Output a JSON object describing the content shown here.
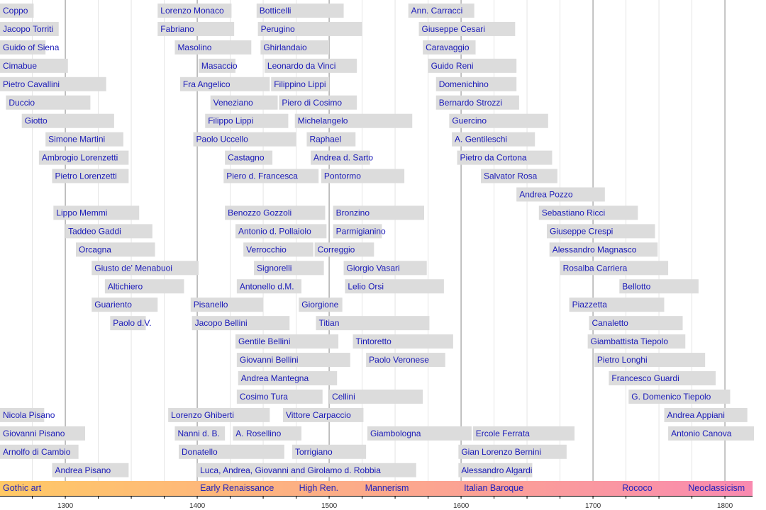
{
  "chart_data": {
    "type": "timeline",
    "xlim": [
      1250,
      1821
    ],
    "x_ticks": [
      1300,
      1400,
      1500,
      1600,
      1700,
      1800
    ],
    "minor_tick_step": 25,
    "grid": true,
    "colors": {
      "bar": "#dcdcdc",
      "label": "#1a1ab8",
      "period_start": "#ffc966",
      "period_end": "#f98ab0",
      "major_grid": "#888888",
      "minor_grid": "#e4e4e4"
    },
    "artists": [
      {
        "name": "Coppo",
        "row": 0,
        "start": 1250,
        "end": 1276
      },
      {
        "name": "Lorenzo Monaco",
        "row": 0,
        "start": 1370,
        "end": 1426
      },
      {
        "name": "Botticelli",
        "row": 0,
        "start": 1445,
        "end": 1511
      },
      {
        "name": "Ann. Carracci",
        "row": 0,
        "start": 1560,
        "end": 1610
      },
      {
        "name": "Jacopo Torriti",
        "row": 1,
        "start": 1250,
        "end": 1295
      },
      {
        "name": "Fabriano",
        "row": 1,
        "start": 1370,
        "end": 1428
      },
      {
        "name": "Perugino",
        "row": 1,
        "start": 1446,
        "end": 1525
      },
      {
        "name": "Giuseppe Cesari",
        "row": 1,
        "start": 1568,
        "end": 1641
      },
      {
        "name": "Guido of Siena",
        "row": 2,
        "start": 1250,
        "end": 1285
      },
      {
        "name": "Masolino",
        "row": 2,
        "start": 1383,
        "end": 1441
      },
      {
        "name": "Ghirlandaio",
        "row": 2,
        "start": 1448,
        "end": 1500
      },
      {
        "name": "Caravaggio",
        "row": 2,
        "start": 1571,
        "end": 1611
      },
      {
        "name": "Cimabue",
        "row": 3,
        "start": 1250,
        "end": 1302
      },
      {
        "name": "Masaccio",
        "row": 3,
        "start": 1401,
        "end": 1429
      },
      {
        "name": "Leonardo da Vinci",
        "row": 3,
        "start": 1451,
        "end": 1521
      },
      {
        "name": "Guido Reni",
        "row": 3,
        "start": 1575,
        "end": 1642
      },
      {
        "name": "Pietro Cavallini",
        "row": 4,
        "start": 1250,
        "end": 1331
      },
      {
        "name": "Fra Angelico",
        "row": 4,
        "start": 1387,
        "end": 1455
      },
      {
        "name": "Filippino Lippi",
        "row": 4,
        "start": 1456,
        "end": 1500
      },
      {
        "name": "Domenichino",
        "row": 4,
        "start": 1581,
        "end": 1642
      },
      {
        "name": "Duccio",
        "row": 5,
        "start": 1255,
        "end": 1319
      },
      {
        "name": "Veneziano",
        "row": 5,
        "start": 1410,
        "end": 1461
      },
      {
        "name": "Piero di Cosimo",
        "row": 5,
        "start": 1462,
        "end": 1521
      },
      {
        "name": "Bernardo Strozzi",
        "row": 5,
        "start": 1581,
        "end": 1644
      },
      {
        "name": "Giotto",
        "row": 6,
        "start": 1267,
        "end": 1337
      },
      {
        "name": "Filippo Lippi",
        "row": 6,
        "start": 1406,
        "end": 1469
      },
      {
        "name": "Michelangelo",
        "row": 6,
        "start": 1474,
        "end": 1563
      },
      {
        "name": "Guercino",
        "row": 6,
        "start": 1591,
        "end": 1666
      },
      {
        "name": "Simone Martini",
        "row": 7,
        "start": 1285,
        "end": 1344
      },
      {
        "name": "Paolo Uccello",
        "row": 7,
        "start": 1397,
        "end": 1475
      },
      {
        "name": "Raphael",
        "row": 7,
        "start": 1483,
        "end": 1520
      },
      {
        "name": "A. Gentileschi",
        "row": 7,
        "start": 1593,
        "end": 1656
      },
      {
        "name": "Ambrogio Lorenzetti",
        "row": 8,
        "start": 1280,
        "end": 1348
      },
      {
        "name": "Castagno",
        "row": 8,
        "start": 1421,
        "end": 1457
      },
      {
        "name": "Andrea d. Sarto",
        "row": 8,
        "start": 1486,
        "end": 1531
      },
      {
        "name": "Pietro da Cortona",
        "row": 8,
        "start": 1597,
        "end": 1669
      },
      {
        "name": "Pietro Lorenzetti",
        "row": 9,
        "start": 1290,
        "end": 1348
      },
      {
        "name": "Piero d. Francesca",
        "row": 9,
        "start": 1420,
        "end": 1492
      },
      {
        "name": "Pontormo",
        "row": 9,
        "start": 1494,
        "end": 1557
      },
      {
        "name": "Salvator Rosa",
        "row": 9,
        "start": 1615,
        "end": 1673
      },
      {
        "name": "Andrea Pozzo",
        "row": 10,
        "start": 1642,
        "end": 1709
      },
      {
        "name": "Lippo Memmi",
        "row": 11,
        "start": 1291,
        "end": 1356
      },
      {
        "name": "Benozzo Gozzoli",
        "row": 11,
        "start": 1421,
        "end": 1497
      },
      {
        "name": "Bronzino",
        "row": 11,
        "start": 1503,
        "end": 1572
      },
      {
        "name": "Sebastiano Ricci",
        "row": 11,
        "start": 1659,
        "end": 1734
      },
      {
        "name": "Taddeo Gaddi",
        "row": 12,
        "start": 1300,
        "end": 1366
      },
      {
        "name": "Antonio d. Pollaiolo",
        "row": 12,
        "start": 1429,
        "end": 1498
      },
      {
        "name": "Parmigianino",
        "row": 12,
        "start": 1503,
        "end": 1540
      },
      {
        "name": "Giuseppe Crespi",
        "row": 12,
        "start": 1665,
        "end": 1747
      },
      {
        "name": "Orcagna",
        "row": 13,
        "start": 1308,
        "end": 1368
      },
      {
        "name": "Verrocchio",
        "row": 13,
        "start": 1435,
        "end": 1488
      },
      {
        "name": "Correggio",
        "row": 13,
        "start": 1489,
        "end": 1534
      },
      {
        "name": "Alessandro Magnasco",
        "row": 13,
        "start": 1667,
        "end": 1749
      },
      {
        "name": "Giusto de' Menabuoi",
        "row": 14,
        "start": 1320,
        "end": 1401
      },
      {
        "name": "Signorelli",
        "row": 14,
        "start": 1443,
        "end": 1496
      },
      {
        "name": "Giorgio Vasari",
        "row": 14,
        "start": 1511,
        "end": 1574
      },
      {
        "name": "Rosalba Carriera",
        "row": 14,
        "start": 1675,
        "end": 1757
      },
      {
        "name": "Altichiero",
        "row": 15,
        "start": 1330,
        "end": 1390
      },
      {
        "name": "Antonello d.M.",
        "row": 15,
        "start": 1430,
        "end": 1479
      },
      {
        "name": "Lelio Orsi",
        "row": 15,
        "start": 1512,
        "end": 1587
      },
      {
        "name": "Bellotto",
        "row": 15,
        "start": 1720,
        "end": 1780
      },
      {
        "name": "Guariento",
        "row": 16,
        "start": 1320,
        "end": 1370
      },
      {
        "name": "Pisanello",
        "row": 16,
        "start": 1395,
        "end": 1450
      },
      {
        "name": "Giorgione",
        "row": 16,
        "start": 1477,
        "end": 1510
      },
      {
        "name": "Piazzetta",
        "row": 16,
        "start": 1682,
        "end": 1754
      },
      {
        "name": "Paolo d.V.",
        "row": 17,
        "start": 1334,
        "end": 1361
      },
      {
        "name": "Jacopo Bellini",
        "row": 17,
        "start": 1396,
        "end": 1470
      },
      {
        "name": "Titian",
        "row": 17,
        "start": 1490,
        "end": 1576
      },
      {
        "name": "Canaletto",
        "row": 17,
        "start": 1697,
        "end": 1768
      },
      {
        "name": "Gentile Bellini",
        "row": 18,
        "start": 1429,
        "end": 1507
      },
      {
        "name": "Tintoretto",
        "row": 18,
        "start": 1518,
        "end": 1594
      },
      {
        "name": "Giambattista Tiepolo",
        "row": 18,
        "start": 1696,
        "end": 1770
      },
      {
        "name": "Giovanni Bellini",
        "row": 19,
        "start": 1430,
        "end": 1516
      },
      {
        "name": "Paolo Veronese",
        "row": 19,
        "start": 1528,
        "end": 1588
      },
      {
        "name": "Pietro Longhi",
        "row": 19,
        "start": 1701,
        "end": 1785
      },
      {
        "name": "Andrea Mantegna",
        "row": 20,
        "start": 1431,
        "end": 1506
      },
      {
        "name": "Francesco Guardi",
        "row": 20,
        "start": 1712,
        "end": 1793
      },
      {
        "name": "Cosimo Tura",
        "row": 21,
        "start": 1430,
        "end": 1495
      },
      {
        "name": "Cellini",
        "row": 21,
        "start": 1500,
        "end": 1571
      },
      {
        "name": "G. Domenico Tiepolo",
        "row": 21,
        "start": 1727,
        "end": 1804
      },
      {
        "name": "Nicola Pisano",
        "row": 22,
        "start": 1250,
        "end": 1284
      },
      {
        "name": "Lorenzo Ghiberti",
        "row": 22,
        "start": 1378,
        "end": 1455
      },
      {
        "name": "Vittore Carpaccio",
        "row": 22,
        "start": 1465,
        "end": 1526
      },
      {
        "name": "Andrea Appiani",
        "row": 22,
        "start": 1754,
        "end": 1817
      },
      {
        "name": "Giovanni Pisano",
        "row": 23,
        "start": 1250,
        "end": 1315
      },
      {
        "name": "Nanni d. B.",
        "row": 23,
        "start": 1383,
        "end": 1421
      },
      {
        "name": "A. Rosellino",
        "row": 23,
        "start": 1427,
        "end": 1479
      },
      {
        "name": "Giambologna",
        "row": 23,
        "start": 1529,
        "end": 1608
      },
      {
        "name": "Ercole Ferrata",
        "row": 23,
        "start": 1609,
        "end": 1686
      },
      {
        "name": "Antonio Canova",
        "row": 23,
        "start": 1757,
        "end": 1822
      },
      {
        "name": "Arnolfo di Cambio",
        "row": 24,
        "start": 1250,
        "end": 1310
      },
      {
        "name": "Donatello",
        "row": 24,
        "start": 1386,
        "end": 1466
      },
      {
        "name": "Torrigiano",
        "row": 24,
        "start": 1472,
        "end": 1528
      },
      {
        "name": "Gian Lorenzo Bernini",
        "row": 24,
        "start": 1598,
        "end": 1680
      },
      {
        "name": "Andrea Pisano",
        "row": 25,
        "start": 1290,
        "end": 1348
      },
      {
        "name": "Luca, Andrea, Giovanni and Girolamo d. Robbia",
        "row": 25,
        "start": 1400,
        "end": 1566
      },
      {
        "name": "Alessandro Algardi",
        "row": 25,
        "start": 1598,
        "end": 1654
      }
    ],
    "periods": [
      {
        "name": "Gothic art",
        "start": 1250,
        "end": 1400
      },
      {
        "name": "Early Renaissance",
        "start": 1400,
        "end": 1475
      },
      {
        "name": "High Ren.",
        "start": 1475,
        "end": 1525
      },
      {
        "name": "Mannerism",
        "start": 1525,
        "end": 1600
      },
      {
        "name": "Italian Baroque",
        "start": 1600,
        "end": 1720
      },
      {
        "name": "Rococo",
        "start": 1720,
        "end": 1770
      },
      {
        "name": "Neoclassicism",
        "start": 1770,
        "end": 1821
      }
    ]
  }
}
